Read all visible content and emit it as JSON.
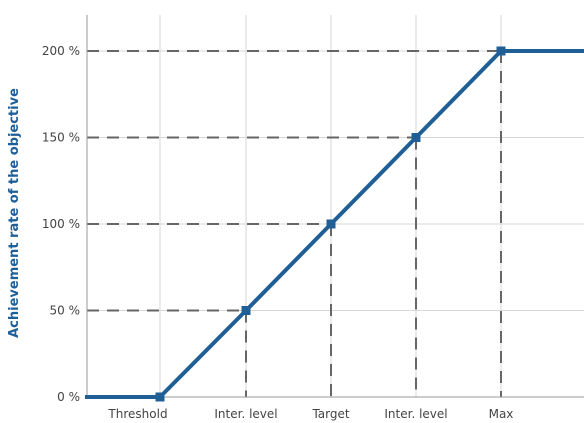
{
  "chart_data": {
    "type": "line",
    "title": "",
    "xlabel": "",
    "ylabel": "Achievement rate of the objective",
    "categories": [
      "Threshold",
      "Inter. level",
      "Target",
      "Inter. level",
      "Max"
    ],
    "y_ticks": [
      "0 %",
      "50 %",
      "100 %",
      "150 %",
      "200 %"
    ],
    "y_values": [
      0,
      50,
      100,
      150,
      200
    ],
    "ylim": [
      0,
      230
    ],
    "series": [
      {
        "x": [
          "Threshold",
          "Inter. level",
          "Target",
          "Inter. level",
          "Max"
        ],
        "values": [
          0,
          50,
          100,
          150,
          200
        ]
      }
    ],
    "grid": true,
    "legend": "none"
  },
  "colors": {
    "line": "#1f5f96",
    "axis_label": "#1f5f96",
    "grid": "#d7d7d7",
    "dashed": "#666666",
    "text": "#444444"
  }
}
